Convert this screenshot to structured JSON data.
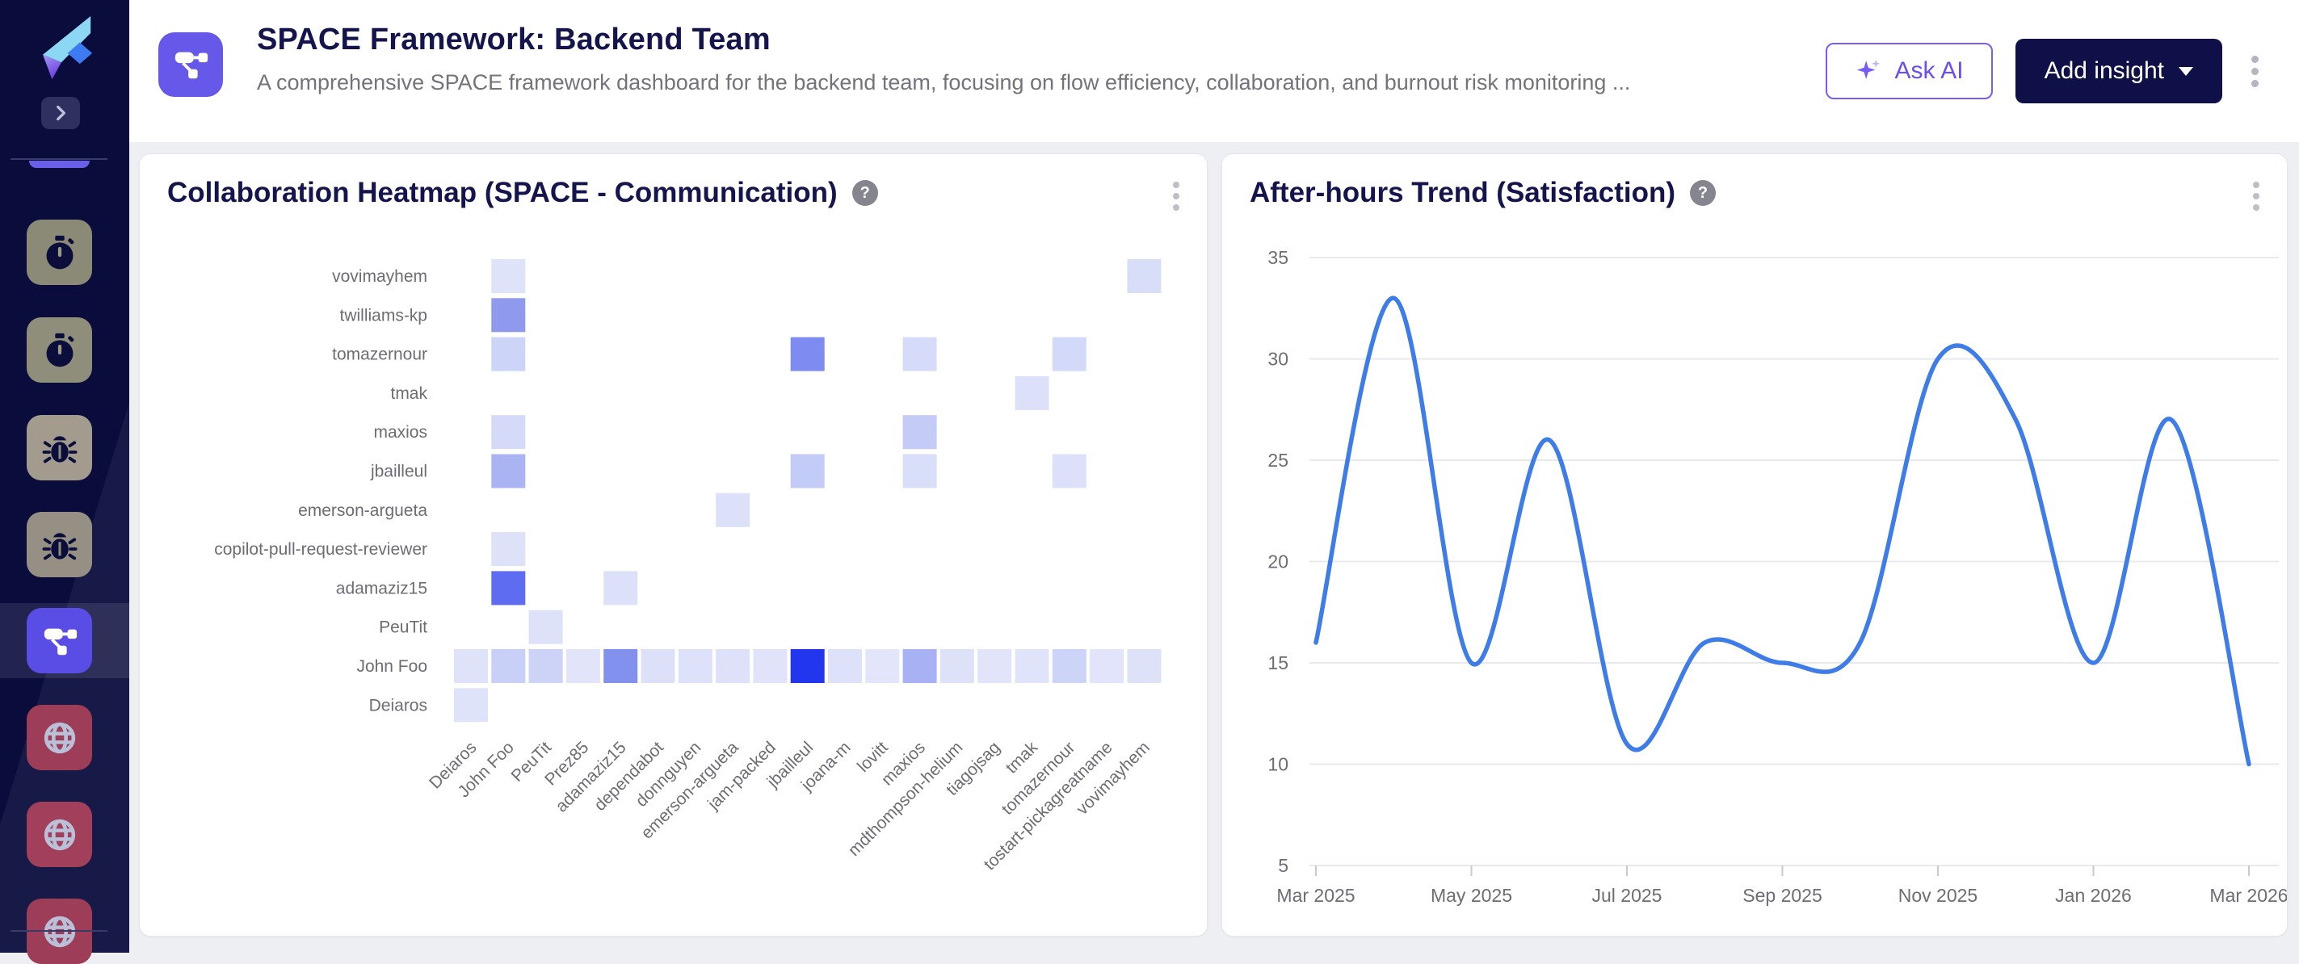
{
  "header": {
    "title": "SPACE Framework: Backend Team",
    "subtitle": "A comprehensive SPACE framework dashboard for the backend team, focusing on flow efficiency, collaboration, and burnout risk monitoring ...",
    "ask_ai_label": "Ask AI",
    "add_insight_label": "Add insight"
  },
  "icons": {
    "help_glyph": "?"
  },
  "sidebar": {
    "items": [
      {
        "icon": "stopwatch",
        "bg": "#8a8a76",
        "selected": false
      },
      {
        "icon": "stopwatch",
        "bg": "#8e8e7a",
        "selected": false
      },
      {
        "icon": "bug",
        "bg": "#a29b8e",
        "selected": false
      },
      {
        "icon": "bug",
        "bg": "#968f84",
        "selected": false
      },
      {
        "icon": "sitemap",
        "bg": "#5a4de6",
        "selected": true
      },
      {
        "icon": "globe",
        "bg": "#9d3d58",
        "selected": false
      },
      {
        "icon": "globe",
        "bg": "#a23f5a",
        "selected": false
      },
      {
        "icon": "globe",
        "bg": "#9d3d58",
        "selected": false
      }
    ]
  },
  "chart_data": [
    {
      "type": "heatmap",
      "title": "Collaboration Heatmap (SPACE - Communication)",
      "x_categories": [
        "Deiaros",
        "John Foo",
        "PeuTit",
        "Prez85",
        "adamaziz15",
        "dependabot",
        "donnguyen",
        "emerson-argueta",
        "jam-packed",
        "jbailleul",
        "joana-m",
        "lovitt",
        "maxios",
        "mdthompson-helium",
        "tiagojsag",
        "tmak",
        "tomazernour",
        "tostart-pickagreatname",
        "vovimayhem"
      ],
      "y_categories": [
        "vovimayhem",
        "twilliams-kp",
        "tomazernour",
        "tmak",
        "maxios",
        "jbailleul",
        "emerson-argueta",
        "copilot-pull-request-reviewer",
        "adamaziz15",
        "PeuTit",
        "John Foo",
        "Deiaros"
      ],
      "cells": [
        {
          "y": "vovimayhem",
          "x": "John Foo",
          "value": 2,
          "color": "#dfe3fa"
        },
        {
          "y": "vovimayhem",
          "x": "vovimayhem",
          "value": 3,
          "color": "#d8def8"
        },
        {
          "y": "twilliams-kp",
          "x": "John Foo",
          "value": 12,
          "color": "#8f9aef"
        },
        {
          "y": "tomazernour",
          "x": "John Foo",
          "value": 5,
          "color": "#ccd4f7"
        },
        {
          "y": "tomazernour",
          "x": "jbailleul",
          "value": 14,
          "color": "#7e8bf0"
        },
        {
          "y": "tomazernour",
          "x": "maxios",
          "value": 3,
          "color": "#d5dbf8"
        },
        {
          "y": "tomazernour",
          "x": "tomazernour",
          "value": 4,
          "color": "#d3d9f8"
        },
        {
          "y": "tmak",
          "x": "tmak",
          "value": 2,
          "color": "#dce1f9"
        },
        {
          "y": "maxios",
          "x": "John Foo",
          "value": 3,
          "color": "#d4daf8"
        },
        {
          "y": "maxios",
          "x": "maxios",
          "value": 6,
          "color": "#c3cbf6"
        },
        {
          "y": "jbailleul",
          "x": "John Foo",
          "value": 9,
          "color": "#aab4f3"
        },
        {
          "y": "jbailleul",
          "x": "jbailleul",
          "value": 6,
          "color": "#c3ccf6"
        },
        {
          "y": "jbailleul",
          "x": "maxios",
          "value": 3,
          "color": "#d9def9"
        },
        {
          "y": "jbailleul",
          "x": "tomazernour",
          "value": 2,
          "color": "#dce1f9"
        },
        {
          "y": "emerson-argueta",
          "x": "emerson-argueta",
          "value": 2,
          "color": "#dce1f9"
        },
        {
          "y": "copilot-pull-request-reviewer",
          "x": "John Foo",
          "value": 2,
          "color": "#dee2f9"
        },
        {
          "y": "adamaziz15",
          "x": "John Foo",
          "value": 18,
          "color": "#5d6cf0"
        },
        {
          "y": "adamaziz15",
          "x": "adamaziz15",
          "value": 2,
          "color": "#dce1f9"
        },
        {
          "y": "PeuTit",
          "x": "PeuTit",
          "value": 2,
          "color": "#dde2f9"
        },
        {
          "y": "John Foo",
          "x": "Deiaros",
          "value": 2,
          "color": "#dfe3f9"
        },
        {
          "y": "John Foo",
          "x": "John Foo",
          "value": 5,
          "color": "#c9d0f7"
        },
        {
          "y": "John Foo",
          "x": "PeuTit",
          "value": 4,
          "color": "#ccd3f7"
        },
        {
          "y": "John Foo",
          "x": "Prez85",
          "value": 1,
          "color": "#e2e5fa"
        },
        {
          "y": "John Foo",
          "x": "adamaziz15",
          "value": 13,
          "color": "#8290ee"
        },
        {
          "y": "John Foo",
          "x": "dependabot",
          "value": 2,
          "color": "#dce0f9"
        },
        {
          "y": "John Foo",
          "x": "donnguyen",
          "value": 2,
          "color": "#dde1f9"
        },
        {
          "y": "John Foo",
          "x": "emerson-argueta",
          "value": 2,
          "color": "#dde1f9"
        },
        {
          "y": "John Foo",
          "x": "jam-packed",
          "value": 1,
          "color": "#e0e3fa"
        },
        {
          "y": "John Foo",
          "x": "jbailleul",
          "value": 25,
          "color": "#2236ed"
        },
        {
          "y": "John Foo",
          "x": "joana-m",
          "value": 2,
          "color": "#dde1f9"
        },
        {
          "y": "John Foo",
          "x": "lovitt",
          "value": 1,
          "color": "#e3e6fa"
        },
        {
          "y": "John Foo",
          "x": "maxios",
          "value": 9,
          "color": "#a7b1f3"
        },
        {
          "y": "John Foo",
          "x": "mdthompson-helium",
          "value": 2,
          "color": "#dee2f9"
        },
        {
          "y": "John Foo",
          "x": "tiagojsag",
          "value": 1,
          "color": "#e2e5fa"
        },
        {
          "y": "John Foo",
          "x": "tmak",
          "value": 1,
          "color": "#e0e4fa"
        },
        {
          "y": "John Foo",
          "x": "tomazernour",
          "value": 4,
          "color": "#ccd4f7"
        },
        {
          "y": "John Foo",
          "x": "tostart-pickagreatname",
          "value": 1,
          "color": "#e1e4fa"
        },
        {
          "y": "John Foo",
          "x": "vovimayhem",
          "value": 2,
          "color": "#dee2f9"
        },
        {
          "y": "Deiaros",
          "x": "Deiaros",
          "value": 2,
          "color": "#dfe3f9"
        }
      ]
    },
    {
      "type": "line",
      "title": "After-hours Trend (Satisfaction)",
      "x": [
        "Mar 2025",
        "Apr 2025",
        "May 2025",
        "Jun 2025",
        "Jul 2025",
        "Aug 2025",
        "Sep 2025",
        "Oct 2025",
        "Nov 2025",
        "Dec 2025",
        "Jan 2026",
        "Feb 2026",
        "Mar 2026"
      ],
      "values": [
        16,
        33,
        15,
        26,
        11,
        16,
        15,
        16,
        30,
        27,
        15,
        27,
        10
      ],
      "x_tick_labels": [
        "Mar 2025",
        "May 2025",
        "Jul 2025",
        "Sep 2025",
        "Nov 2025",
        "Jan 2026",
        "Mar 2026"
      ],
      "y_ticks": [
        5,
        10,
        15,
        20,
        25,
        30,
        35
      ],
      "ylim": [
        5,
        35
      ],
      "grid": true,
      "legend": "none",
      "line_color": "#3e7ce8",
      "smoothing": "spline"
    }
  ]
}
